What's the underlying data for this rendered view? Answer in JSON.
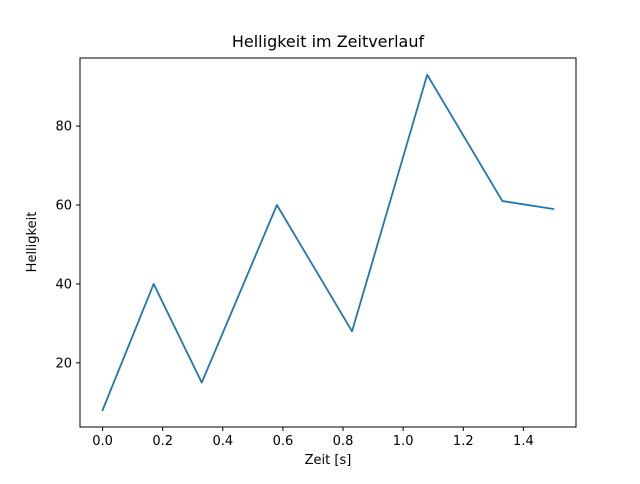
{
  "chart_data": {
    "type": "line",
    "title": "Helligkeit im Zeitverlauf",
    "xlabel": "Zeit [s]",
    "ylabel": "Helligkeit",
    "x": [
      0.0,
      0.17,
      0.33,
      0.58,
      0.83,
      1.08,
      1.33,
      1.5
    ],
    "y": [
      8,
      40,
      15,
      60,
      28,
      93,
      61,
      59
    ],
    "xticks": [
      0.0,
      0.2,
      0.4,
      0.6,
      0.8,
      1.0,
      1.2,
      1.4
    ],
    "yticks": [
      20,
      40,
      60,
      80
    ],
    "xlim": [
      -0.075,
      1.575
    ],
    "ylim": [
      3.75,
      97.25
    ],
    "line_color": "#1f77b4",
    "axis_color": "#000000",
    "grid": false,
    "legend_position": "none"
  }
}
